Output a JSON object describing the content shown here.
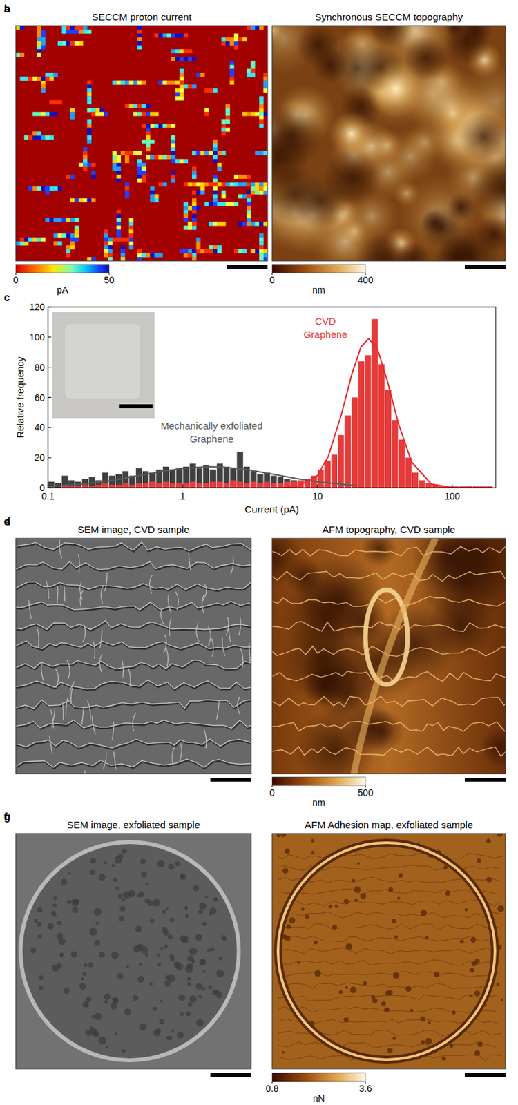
{
  "panels": [
    {
      "label": "a",
      "title": "SECCM proton current",
      "colorbar": {
        "range": [
          0,
          50
        ],
        "ticks": [
          0,
          50
        ],
        "unit": "pA"
      }
    },
    {
      "label": "b",
      "title": "Synchronous SECCM topography",
      "colorbar": {
        "range": [
          0,
          400
        ],
        "ticks": [
          0,
          400
        ],
        "unit": "nm"
      }
    },
    {
      "label": "d",
      "title": "SEM image, CVD sample"
    },
    {
      "label": "e",
      "title": "AFM topography, CVD sample",
      "colorbar": {
        "range": [
          0,
          500
        ],
        "ticks": [
          0,
          500
        ],
        "unit": "nm"
      }
    },
    {
      "label": "f",
      "title": "SEM image, exfoliated sample"
    },
    {
      "label": "g",
      "title": "AFM Adhesion map, exfoliated sample",
      "colorbar": {
        "range": [
          0.8,
          3.6
        ],
        "ticks": [
          0.8,
          3.6
        ],
        "unit": "nN"
      }
    }
  ],
  "chart_data": {
    "label": "c",
    "type": "histogram",
    "x_label": "Current (pA)",
    "y_label": "Relative frequency",
    "log": "x",
    "xlim": [
      0.1,
      210
    ],
    "xticks": [
      0.1,
      1,
      10,
      100
    ],
    "ylim": [
      0,
      120
    ],
    "yticks": [
      0,
      20,
      40,
      60,
      80,
      100,
      120
    ],
    "bins": [
      0.1,
      0.112,
      0.126,
      0.141,
      0.158,
      0.178,
      0.2,
      0.224,
      0.251,
      0.282,
      0.316,
      0.355,
      0.398,
      0.447,
      0.501,
      0.562,
      0.631,
      0.708,
      0.794,
      0.891,
      1,
      1.12,
      1.26,
      1.41,
      1.58,
      1.78,
      2,
      2.24,
      2.51,
      2.82,
      3.16,
      3.55,
      3.98,
      4.47,
      5.01,
      5.62,
      6.31,
      7.08,
      7.94,
      8.91,
      10,
      11.2,
      12.6,
      14.1,
      15.8,
      17.8,
      20,
      22.4,
      25.1,
      28.2,
      31.6,
      35.5,
      39.8,
      44.7,
      50.1,
      56.2,
      63.1,
      70.8,
      79.4,
      89.1,
      100,
      112,
      126,
      141,
      158,
      178,
      200
    ],
    "series": [
      {
        "name": "Mechanically exfoliated Graphene",
        "type": "bar",
        "color": "#404040",
        "values": [
          4,
          3,
          8,
          5,
          4,
          6,
          7,
          5,
          10,
          8,
          9,
          11,
          8,
          13,
          11,
          10,
          12,
          14,
          12,
          13,
          14,
          16,
          13,
          15,
          12,
          16,
          14,
          13,
          24,
          14,
          11,
          9,
          10,
          8,
          7,
          6,
          5,
          4,
          3,
          2,
          2,
          1,
          1,
          0,
          0,
          0,
          0,
          0,
          0,
          0,
          0,
          0,
          0,
          0,
          0,
          0,
          0,
          0,
          0,
          0,
          0,
          0,
          0,
          0,
          0,
          0
        ]
      },
      {
        "name": "CVD Graphene",
        "type": "bar",
        "color": "#e53b3b",
        "values": [
          1,
          0,
          2,
          1,
          1,
          2,
          1,
          2,
          3,
          2,
          2,
          3,
          2,
          3,
          3,
          4,
          3,
          4,
          3,
          3,
          3,
          4,
          3,
          3,
          4,
          4,
          3,
          5,
          4,
          3,
          4,
          3,
          4,
          3,
          3,
          4,
          4,
          5,
          6,
          8,
          12,
          18,
          22,
          35,
          48,
          60,
          84,
          88,
          112,
          82,
          65,
          45,
          32,
          20,
          10,
          5,
          3,
          2,
          1,
          1,
          1,
          1,
          1,
          1,
          1,
          1
        ]
      },
      {
        "type": "line",
        "color": "#5a5a5a",
        "x": [
          0.1,
          0.2,
          0.3,
          0.5,
          0.7,
          1,
          1.5,
          2,
          3,
          5,
          7,
          10,
          20
        ],
        "values": [
          0.8,
          2.8,
          4.9,
          8.5,
          10.9,
          12.9,
          14,
          13.7,
          12,
          8.5,
          6.1,
          3.9,
          1.2
        ]
      },
      {
        "type": "line",
        "color": "#e8272b",
        "x": [
          5,
          7,
          10,
          12,
          15,
          18,
          21,
          24,
          28,
          33,
          40,
          50,
          70,
          100,
          200
        ],
        "values": [
          0,
          0.7,
          8.1,
          20.6,
          48.2,
          75.5,
          93.4,
          99,
          91.6,
          70.9,
          42.2,
          17,
          2.4,
          0.1,
          0
        ]
      }
    ]
  }
}
